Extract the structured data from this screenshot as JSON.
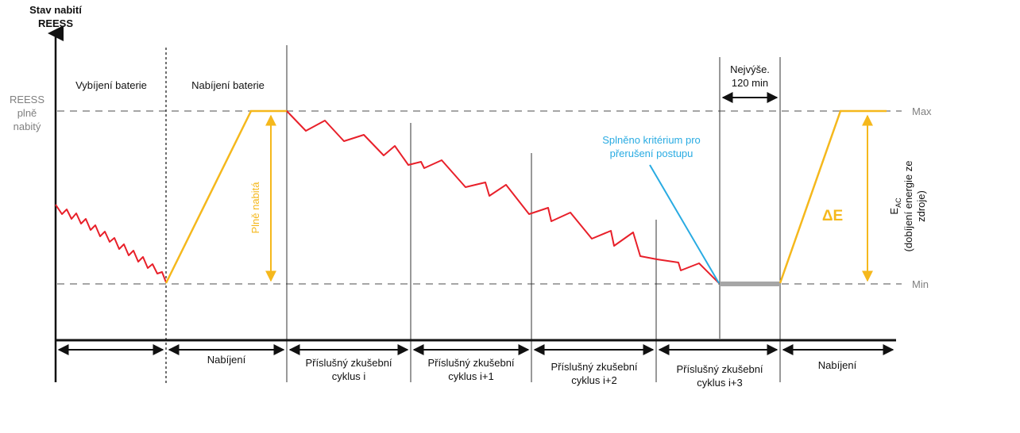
{
  "y_axis": {
    "title_line1": "Stav nabití",
    "title_line2": "REESS",
    "full_line1": "REESS",
    "full_line2": "plně",
    "full_line3": "nabitý"
  },
  "levels": {
    "max_label": "Max",
    "min_label": "Min"
  },
  "phase_labels": {
    "discharge": "Vybíjení baterie",
    "charge": "Nabíjení baterie"
  },
  "annotations": {
    "fully_charged": "Plně nabitá",
    "criterion_line1": "Splněno kritérium pro",
    "criterion_line2": "přerušení postupu",
    "max_time_line1": "Nejvýše.",
    "max_time_line2": "120 min",
    "delta_e": "ΔE",
    "eac_main": "E",
    "eac_sub": "AC",
    "eac_line2": "(dobíjení energie ze",
    "eac_line3": "zdroje)"
  },
  "bottom_segments": [
    {
      "line1": "",
      "line2": ""
    },
    {
      "line1": "Nabíjení",
      "line2": ""
    },
    {
      "line1": "Příslušný  zkušební",
      "line2": "cyklus i"
    },
    {
      "line1": "Příslušný zkušební",
      "line2": "cyklus i+1"
    },
    {
      "line1": "Příslušný  zkušební",
      "line2": "cyklus i+2"
    },
    {
      "line1": "Příslušný zkušební",
      "line2": "cyklus i+3"
    },
    {
      "line1": "Nabíjení",
      "line2": ""
    }
  ],
  "colors": {
    "discharge_curve": "#e8202a",
    "charge_line": "#f5b81c",
    "criterion_line": "#29abe2",
    "rest_segment": "#a6a6a6",
    "dashed_level": "#a6a6a6",
    "axis": "#111111"
  }
}
